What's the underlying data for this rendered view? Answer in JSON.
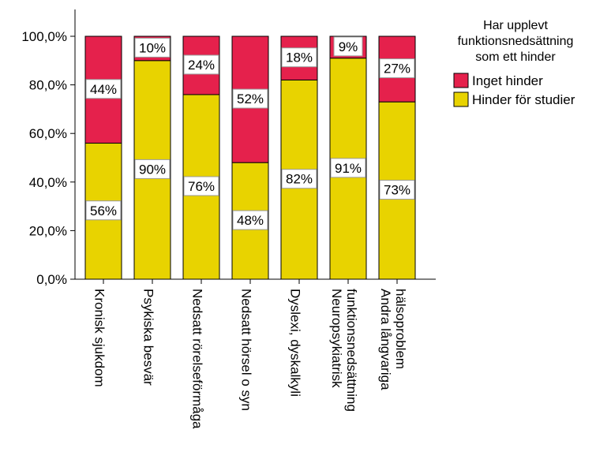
{
  "chart_data": {
    "type": "bar",
    "stacked": true,
    "categories": [
      [
        "Kronisk sjukdom"
      ],
      [
        "Psykiska besvär"
      ],
      [
        "Nedsatt rörelseförmåga"
      ],
      [
        "Nedsatt hörsel o syn"
      ],
      [
        "Dyslexi, dyskalkyli"
      ],
      [
        "Neuropsykiatrisk",
        "funktionsnedsättning"
      ],
      [
        "Andra långvariga",
        "hälsoproblem"
      ]
    ],
    "series": [
      {
        "name": "Hinder för studier",
        "color": "#E8D300",
        "values": [
          56,
          90,
          76,
          48,
          82,
          91,
          73
        ],
        "labels": [
          "56%",
          "90%",
          "76%",
          "48%",
          "82%",
          "91%",
          "73%"
        ]
      },
      {
        "name": "Inget hinder",
        "color": "#E5214C",
        "values": [
          44,
          10,
          24,
          52,
          18,
          9,
          27
        ],
        "labels": [
          "44%",
          "10%",
          "24%",
          "52%",
          "18%",
          "9%",
          "27%"
        ]
      }
    ],
    "yticks": [
      "0,0%",
      "20,0%",
      "40,0%",
      "60,0%",
      "80,0%",
      "100,0%"
    ],
    "ylim": [
      0,
      100
    ],
    "legend": {
      "title": [
        "Har upplevt",
        "funktionsnedsättning",
        "som ett hinder"
      ],
      "position": "top-right",
      "order": [
        "Inget hinder",
        "Hinder för studier"
      ]
    },
    "grid": false
  }
}
